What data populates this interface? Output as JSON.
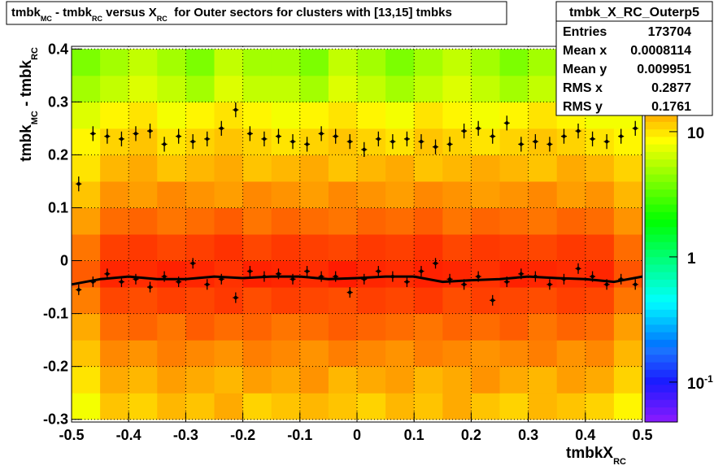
{
  "chart_data": {
    "type": "heatmap",
    "title": [
      {
        "text": "tmbk"
      },
      {
        "text": "MC",
        "sub": true
      },
      {
        "text": " - tmbk"
      },
      {
        "text": "RC",
        "sub": true
      },
      {
        "text": " versus X"
      },
      {
        "text": "RC",
        "sub": true
      },
      {
        "text": "  for Outer sectors for clusters with [13,15] tmbks"
      }
    ],
    "x_label": [
      {
        "text": "tmbkX"
      },
      {
        "text": "RC",
        "sub": true
      }
    ],
    "y_label": [
      {
        "text": "tmbk"
      },
      {
        "text": "MC",
        "sub": true
      },
      {
        "text": " - tmbk"
      },
      {
        "text": "RC",
        "sub": true
      }
    ],
    "xlim": [
      -0.5,
      0.5
    ],
    "ylim": [
      -0.305,
      0.405
    ],
    "xticks": [
      -0.5,
      -0.4,
      -0.3,
      -0.2,
      -0.1,
      0,
      0.1,
      0.2,
      0.3,
      0.4,
      0.5
    ],
    "yticks": [
      -0.3,
      -0.2,
      -0.1,
      0,
      0.1,
      0.2,
      0.3,
      0.4
    ],
    "grid": true,
    "zlim": [
      0.048,
      48
    ],
    "zlog": true,
    "zticks": [
      {
        "value": 0.1,
        "label": "10",
        "exponent": "-1"
      },
      1,
      10
    ],
    "xbins": [
      -0.5,
      -0.45,
      -0.4,
      -0.35,
      -0.3,
      -0.25,
      -0.2,
      -0.15,
      -0.1,
      -0.05,
      0,
      0.05,
      0.1,
      0.15,
      0.2,
      0.25,
      0.3,
      0.35,
      0.4,
      0.45,
      0.5
    ],
    "ybins": [
      -0.3,
      -0.25,
      -0.2,
      -0.15,
      -0.1,
      -0.05,
      0,
      0.05,
      0.1,
      0.15,
      0.2,
      0.25,
      0.3,
      0.35,
      0.4
    ],
    "z": [
      [
        8,
        12,
        11,
        13,
        12,
        14,
        11,
        12,
        13,
        12,
        11,
        13,
        12,
        14,
        12,
        11,
        13,
        12,
        11,
        9
      ],
      [
        10,
        14,
        13,
        15,
        14,
        13,
        15,
        14,
        16,
        13,
        14,
        15,
        13,
        14,
        16,
        14,
        13,
        15,
        14,
        11
      ],
      [
        12,
        17,
        16,
        18,
        17,
        16,
        18,
        17,
        16,
        18,
        17,
        16,
        18,
        17,
        16,
        17,
        18,
        16,
        17,
        13
      ],
      [
        14,
        20,
        21,
        19,
        22,
        20,
        21,
        19,
        20,
        22,
        21,
        20,
        19,
        21,
        20,
        22,
        19,
        21,
        20,
        15
      ],
      [
        18,
        25,
        24,
        26,
        25,
        27,
        24,
        26,
        25,
        24,
        26,
        25,
        27,
        24,
        26,
        25,
        24,
        26,
        25,
        19
      ],
      [
        22,
        30,
        29,
        31,
        30,
        28,
        31,
        30,
        29,
        32,
        30,
        29,
        31,
        30,
        28,
        31,
        30,
        29,
        30,
        23
      ],
      [
        19,
        26,
        27,
        25,
        26,
        28,
        25,
        27,
        26,
        25,
        27,
        26,
        28,
        25,
        27,
        26,
        25,
        27,
        26,
        20
      ],
      [
        15,
        20,
        21,
        19,
        20,
        22,
        19,
        21,
        20,
        19,
        21,
        20,
        22,
        19,
        21,
        20,
        19,
        21,
        20,
        16
      ],
      [
        12,
        16,
        15,
        17,
        16,
        15,
        17,
        16,
        15,
        17,
        16,
        15,
        17,
        16,
        15,
        16,
        17,
        15,
        16,
        13
      ],
      [
        10,
        13,
        14,
        12,
        13,
        14,
        12,
        13,
        14,
        12,
        13,
        14,
        12,
        13,
        14,
        13,
        12,
        14,
        13,
        11
      ],
      [
        9,
        11,
        12,
        10,
        11,
        12,
        11,
        10,
        11,
        12,
        11,
        10,
        12,
        11,
        10,
        11,
        12,
        11,
        10,
        9
      ],
      [
        7,
        9,
        10,
        8,
        9,
        10,
        9,
        8,
        9,
        10,
        9,
        8,
        10,
        9,
        8,
        9,
        10,
        9,
        8,
        8
      ],
      [
        5,
        6,
        7,
        6,
        5,
        7,
        6,
        6,
        5,
        7,
        6,
        5,
        6,
        7,
        6,
        5,
        6,
        7,
        6,
        5
      ],
      [
        4,
        5,
        6,
        5,
        4,
        6,
        5,
        5,
        4,
        6,
        5,
        4,
        5,
        6,
        5,
        4,
        5,
        6,
        5,
        4
      ]
    ],
    "points_x": [
      -0.4875,
      -0.4625,
      -0.4375,
      -0.4125,
      -0.3875,
      -0.3625,
      -0.3375,
      -0.3125,
      -0.2875,
      -0.2625,
      -0.2375,
      -0.2125,
      -0.1875,
      -0.1625,
      -0.1375,
      -0.1125,
      -0.0875,
      -0.0625,
      -0.0375,
      -0.0125,
      0.0125,
      0.0375,
      0.0625,
      0.0875,
      0.1125,
      0.1375,
      0.1625,
      0.1875,
      0.2125,
      0.2375,
      0.2625,
      0.2875,
      0.3125,
      0.3375,
      0.3625,
      0.3875,
      0.4125,
      0.4375,
      0.4625,
      0.4875
    ],
    "series": [
      {
        "color": "#000000",
        "yerr": 0.014,
        "values": [
          0.145,
          0.24,
          0.235,
          0.23,
          0.24,
          0.245,
          0.22,
          0.235,
          0.225,
          0.23,
          0.25,
          0.285,
          0.24,
          0.23,
          0.235,
          0.225,
          0.22,
          0.24,
          0.235,
          0.225,
          0.21,
          0.23,
          0.225,
          0.23,
          0.225,
          0.215,
          0.22,
          0.245,
          0.25,
          0.235,
          0.26,
          0.22,
          0.225,
          0.22,
          0.235,
          0.245,
          0.23,
          0.225,
          0.235,
          0.25
        ]
      },
      {
        "color": "#000000",
        "yerr": 0.01,
        "values": [
          -0.055,
          -0.04,
          -0.025,
          -0.04,
          -0.035,
          -0.05,
          -0.03,
          -0.04,
          -0.005,
          -0.045,
          -0.035,
          -0.07,
          -0.02,
          -0.03,
          -0.025,
          -0.035,
          -0.02,
          -0.03,
          -0.03,
          -0.06,
          -0.035,
          -0.02,
          -0.03,
          -0.04,
          -0.02,
          -0.005,
          -0.035,
          -0.045,
          -0.03,
          -0.075,
          -0.04,
          -0.025,
          -0.03,
          -0.045,
          -0.035,
          -0.015,
          -0.03,
          -0.045,
          -0.035,
          -0.045
        ]
      }
    ],
    "line_x": [
      -0.5,
      -0.45,
      -0.4,
      -0.35,
      -0.3,
      -0.25,
      -0.2,
      -0.15,
      -0.1,
      -0.05,
      0,
      0.05,
      0.1,
      0.15,
      0.2,
      0.25,
      0.3,
      0.35,
      0.4,
      0.45,
      0.5
    ],
    "line_values": [
      -0.045,
      -0.035,
      -0.03,
      -0.035,
      -0.035,
      -0.03,
      -0.033,
      -0.03,
      -0.03,
      -0.035,
      -0.033,
      -0.03,
      -0.03,
      -0.04,
      -0.037,
      -0.035,
      -0.03,
      -0.033,
      -0.035,
      -0.04,
      -0.03
    ],
    "stats": {
      "name": "tmbk_X_RC_Outerp5",
      "rows": [
        {
          "label": "Entries",
          "value": 173704
        },
        {
          "label": "Mean x",
          "value": 0.0008114
        },
        {
          "label": "Mean y",
          "value": 0.009951
        },
        {
          "label": "RMS x",
          "value": 0.2877
        },
        {
          "label": "RMS y",
          "value": 0.1761
        }
      ]
    }
  }
}
